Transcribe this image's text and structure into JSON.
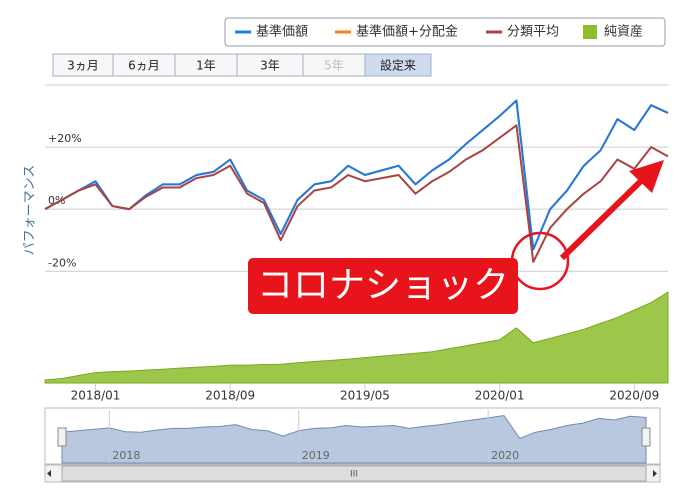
{
  "chart_data": {
    "type": "line",
    "range_buttons": [
      "3ヵ月",
      "6ヵ月",
      "1年",
      "3年",
      "5年",
      "設定来"
    ],
    "selected_range": "設定来",
    "disabled_ranges": [
      "5年"
    ],
    "y_label": "パフォーマンス",
    "annotation": "コロナショック",
    "x": [
      "2017/10",
      "2017/11",
      "2017/12",
      "2018/01",
      "2018/02",
      "2018/03",
      "2018/04",
      "2018/05",
      "2018/06",
      "2018/07",
      "2018/08",
      "2018/09",
      "2018/10",
      "2018/11",
      "2018/12",
      "2019/01",
      "2019/02",
      "2019/03",
      "2019/04",
      "2019/05",
      "2019/06",
      "2019/07",
      "2019/08",
      "2019/09",
      "2019/10",
      "2019/11",
      "2019/12",
      "2020/01",
      "2020/02",
      "2020/03",
      "2020/04",
      "2020/05",
      "2020/06",
      "2020/07",
      "2020/08",
      "2020/09",
      "2020/10",
      "2020/11"
    ],
    "xlim": [
      "2017/10",
      "2020/11"
    ],
    "xticks": [
      "2018/01",
      "2018/09",
      "2019/05",
      "2020/01",
      "2020/09"
    ],
    "ylim": [
      -56,
      40
    ],
    "yticks": [
      {
        "value": 20,
        "label": "+20%"
      },
      {
        "value": 0,
        "label": "0%"
      },
      {
        "value": -20,
        "label": "-20%"
      }
    ],
    "y2lim": [
      0,
      100
    ],
    "grid": true,
    "navigator_labels": [
      "2018",
      "2019",
      "2020"
    ],
    "series": [
      {
        "name": "基準価額+分配金",
        "color": "#f7821b",
        "values": [
          0,
          3,
          6,
          9,
          1,
          0,
          4.5,
          8,
          8,
          11,
          12,
          16,
          6,
          3,
          -8,
          3,
          8,
          9,
          14,
          11,
          12.5,
          14,
          8,
          12.5,
          16,
          21,
          25.5,
          30,
          35,
          -13,
          0,
          6,
          14,
          19,
          29,
          25.5,
          33.5,
          31
        ]
      },
      {
        "name": "基準価額",
        "color": "#1e7be6",
        "values": [
          0,
          3,
          6,
          9,
          1,
          0,
          4.5,
          8,
          8,
          11,
          12,
          16,
          6,
          3,
          -8,
          3,
          8,
          9,
          14,
          11,
          12.5,
          14,
          8,
          12.5,
          16,
          21,
          25.5,
          30,
          35,
          -13,
          0,
          6,
          14,
          19,
          29,
          25.5,
          33.5,
          31
        ]
      },
      {
        "name": "分類平均",
        "color": "#a94442",
        "values": [
          0,
          3,
          6,
          8,
          1,
          0,
          4,
          7,
          7,
          10,
          11,
          14,
          5,
          2,
          -10,
          1,
          6,
          7,
          11,
          9,
          10,
          11,
          5,
          9,
          12,
          16,
          19,
          23,
          27,
          -17,
          -6,
          0,
          5,
          9,
          16,
          13,
          20,
          17
        ]
      },
      {
        "name": "純資産",
        "color": "#8cbd2a",
        "type": "area",
        "axis": "y2",
        "values": [
          1,
          1.5,
          2.5,
          3.5,
          3.8,
          4,
          4.3,
          4.6,
          5,
          5.3,
          5.6,
          6,
          6,
          6.2,
          6.3,
          6.8,
          7.2,
          7.6,
          8,
          8.5,
          9,
          9.5,
          10,
          10.5,
          11.5,
          12.5,
          13.5,
          14.5,
          18.5,
          13.5,
          15,
          16.5,
          18,
          20,
          22,
          24.5,
          27,
          30.5
        ]
      }
    ],
    "legend_order": [
      1,
      0,
      2,
      3
    ]
  }
}
